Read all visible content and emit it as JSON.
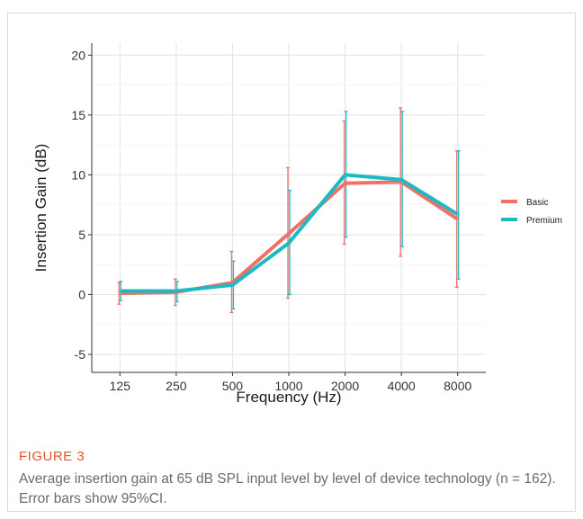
{
  "chart_data": {
    "type": "line",
    "xlabel": "Frequency (Hz)",
    "ylabel": "Insertion Gain (dB)",
    "ylim": [
      -6.5,
      21
    ],
    "y_ticks": [
      -5,
      0,
      5,
      10,
      15,
      20
    ],
    "categories": [
      "125",
      "250",
      "500",
      "1000",
      "2000",
      "4000",
      "8000"
    ],
    "grid": true,
    "legend_position": "right",
    "series": [
      {
        "name": "Basic",
        "color": "#f07167",
        "values": [
          0.1,
          0.2,
          1.0,
          5.1,
          9.3,
          9.4,
          6.3
        ],
        "ci_low": [
          -0.8,
          -0.9,
          -1.5,
          -0.3,
          4.2,
          3.2,
          0.6
        ],
        "ci_high": [
          1.0,
          1.3,
          3.6,
          10.6,
          14.5,
          15.6,
          12.0
        ]
      },
      {
        "name": "Premium",
        "color": "#1fb9c4",
        "values": [
          0.3,
          0.3,
          0.8,
          4.3,
          10.0,
          9.6,
          6.7
        ],
        "ci_low": [
          -0.5,
          -0.6,
          -1.2,
          0.0,
          4.8,
          4.0,
          1.3
        ],
        "ci_high": [
          1.1,
          1.1,
          2.8,
          8.7,
          15.3,
          15.3,
          12.0
        ]
      }
    ]
  },
  "figure": {
    "label": "FIGURE 3",
    "caption": "Average insertion gain at 65 dB SPL input level by level of device technology (n = 162). Error bars show 95%CI."
  }
}
